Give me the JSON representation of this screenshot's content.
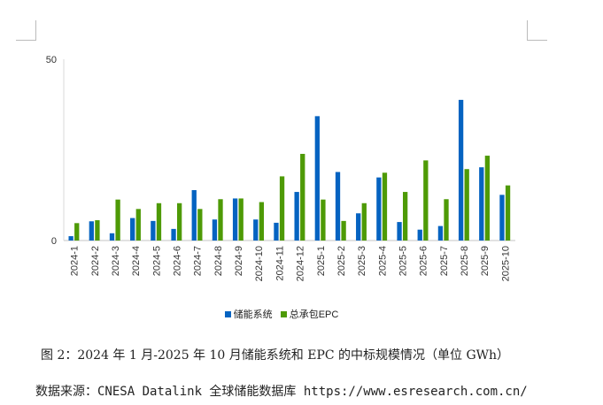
{
  "chart_data": {
    "type": "bar",
    "title": "",
    "xlabel": "",
    "ylabel": "",
    "ylim": [
      0,
      50
    ],
    "yticks": [
      "0",
      "50"
    ],
    "categories": [
      "2024-1",
      "2024-2",
      "2024-3",
      "2024-4",
      "2024-5",
      "2024-6",
      "2024-7",
      "2024-8",
      "2024-9",
      "2024-10",
      "2024-11",
      "2024-12",
      "2025-1",
      "2025-2",
      "2025-3",
      "2025-4",
      "2025-5",
      "2025-6",
      "2025-7",
      "2025-8",
      "2025-9",
      "2025-10"
    ],
    "series": [
      {
        "name": "储能系统",
        "color": "#0563c1",
        "values": [
          1.2,
          5.3,
          2.0,
          6.2,
          5.4,
          3.2,
          13.9,
          5.8,
          11.6,
          5.8,
          4.9,
          13.4,
          34.3,
          18.9,
          7.5,
          17.4,
          5.1,
          3.0,
          4.0,
          38.8,
          20.2,
          12.6
        ]
      },
      {
        "name": "总承包EPC",
        "color": "#4e9a06",
        "values": [
          4.8,
          5.6,
          11.3,
          8.7,
          10.3,
          10.3,
          8.7,
          11.4,
          11.6,
          10.6,
          17.7,
          23.9,
          11.3,
          5.4,
          10.3,
          18.7,
          13.4,
          22.1,
          11.4,
          19.7,
          23.4,
          15.2
        ]
      }
    ],
    "legend_position": "bottom"
  },
  "caption": "图 2：2024 年 1 月-2025 年 10 月储能系统和 EPC 的中标规模情况（单位 GWh）",
  "source": "数据来源：CNESA Datalink 全球储能数据库 https://www.esresearch.com.cn/"
}
